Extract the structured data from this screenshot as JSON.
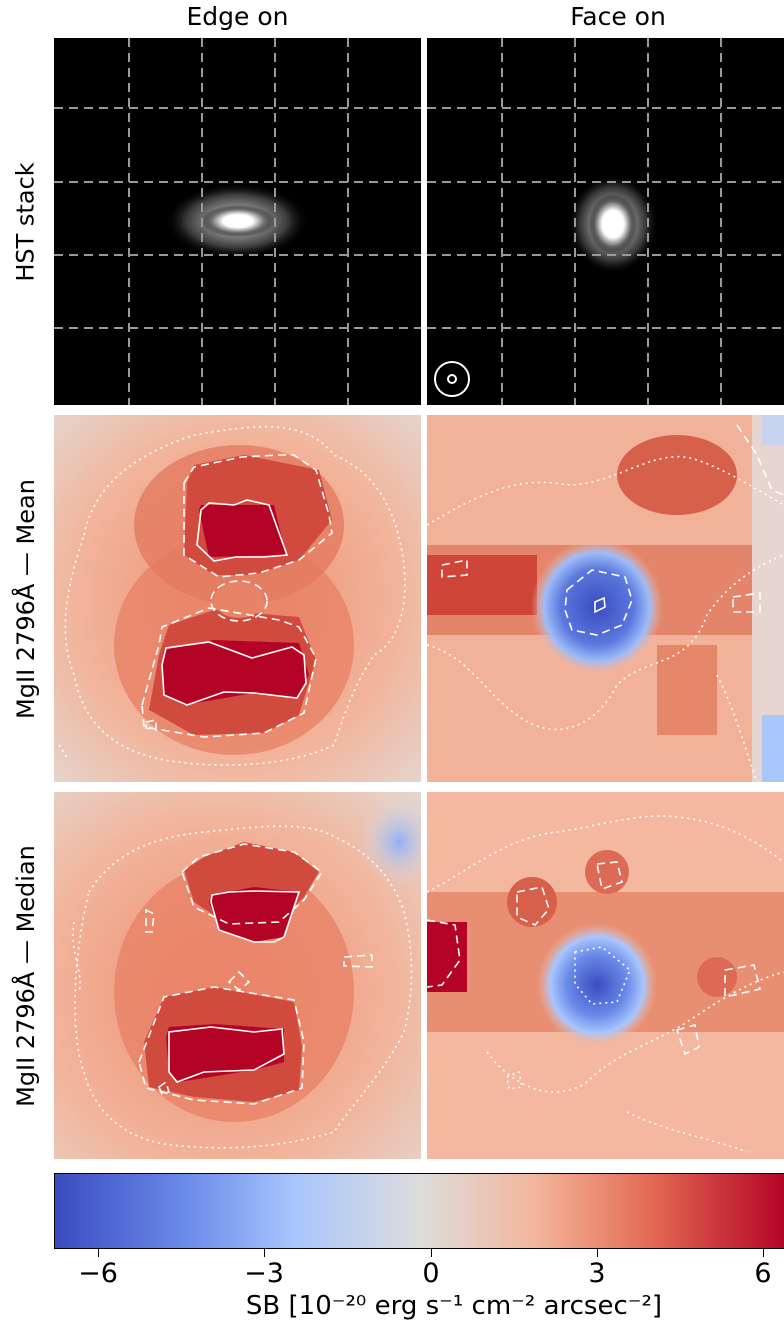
{
  "columns": [
    "Edge on",
    "Face on"
  ],
  "rows": [
    "HST stack",
    "MgII 2796Å  —  Mean",
    "MgII 2796Å  —  Median"
  ],
  "colorbar": {
    "ticks": [
      "−6",
      "−3",
      "0",
      "3",
      "6"
    ],
    "tick_values": [
      -6,
      -3,
      0,
      3,
      6
    ],
    "range": [
      -6.8,
      6.8
    ],
    "label": "SB [10⁻²⁰ erg s⁻¹ cm⁻² arcsec⁻²]",
    "colormap": [
      "#3b4cc0",
      "#dddcdc",
      "#b40426"
    ]
  },
  "colors": {
    "hst_background": "#000000",
    "grid": "#999999",
    "contour": "#ffffff"
  },
  "icons": {
    "psf": "psf-circle-icon"
  }
}
